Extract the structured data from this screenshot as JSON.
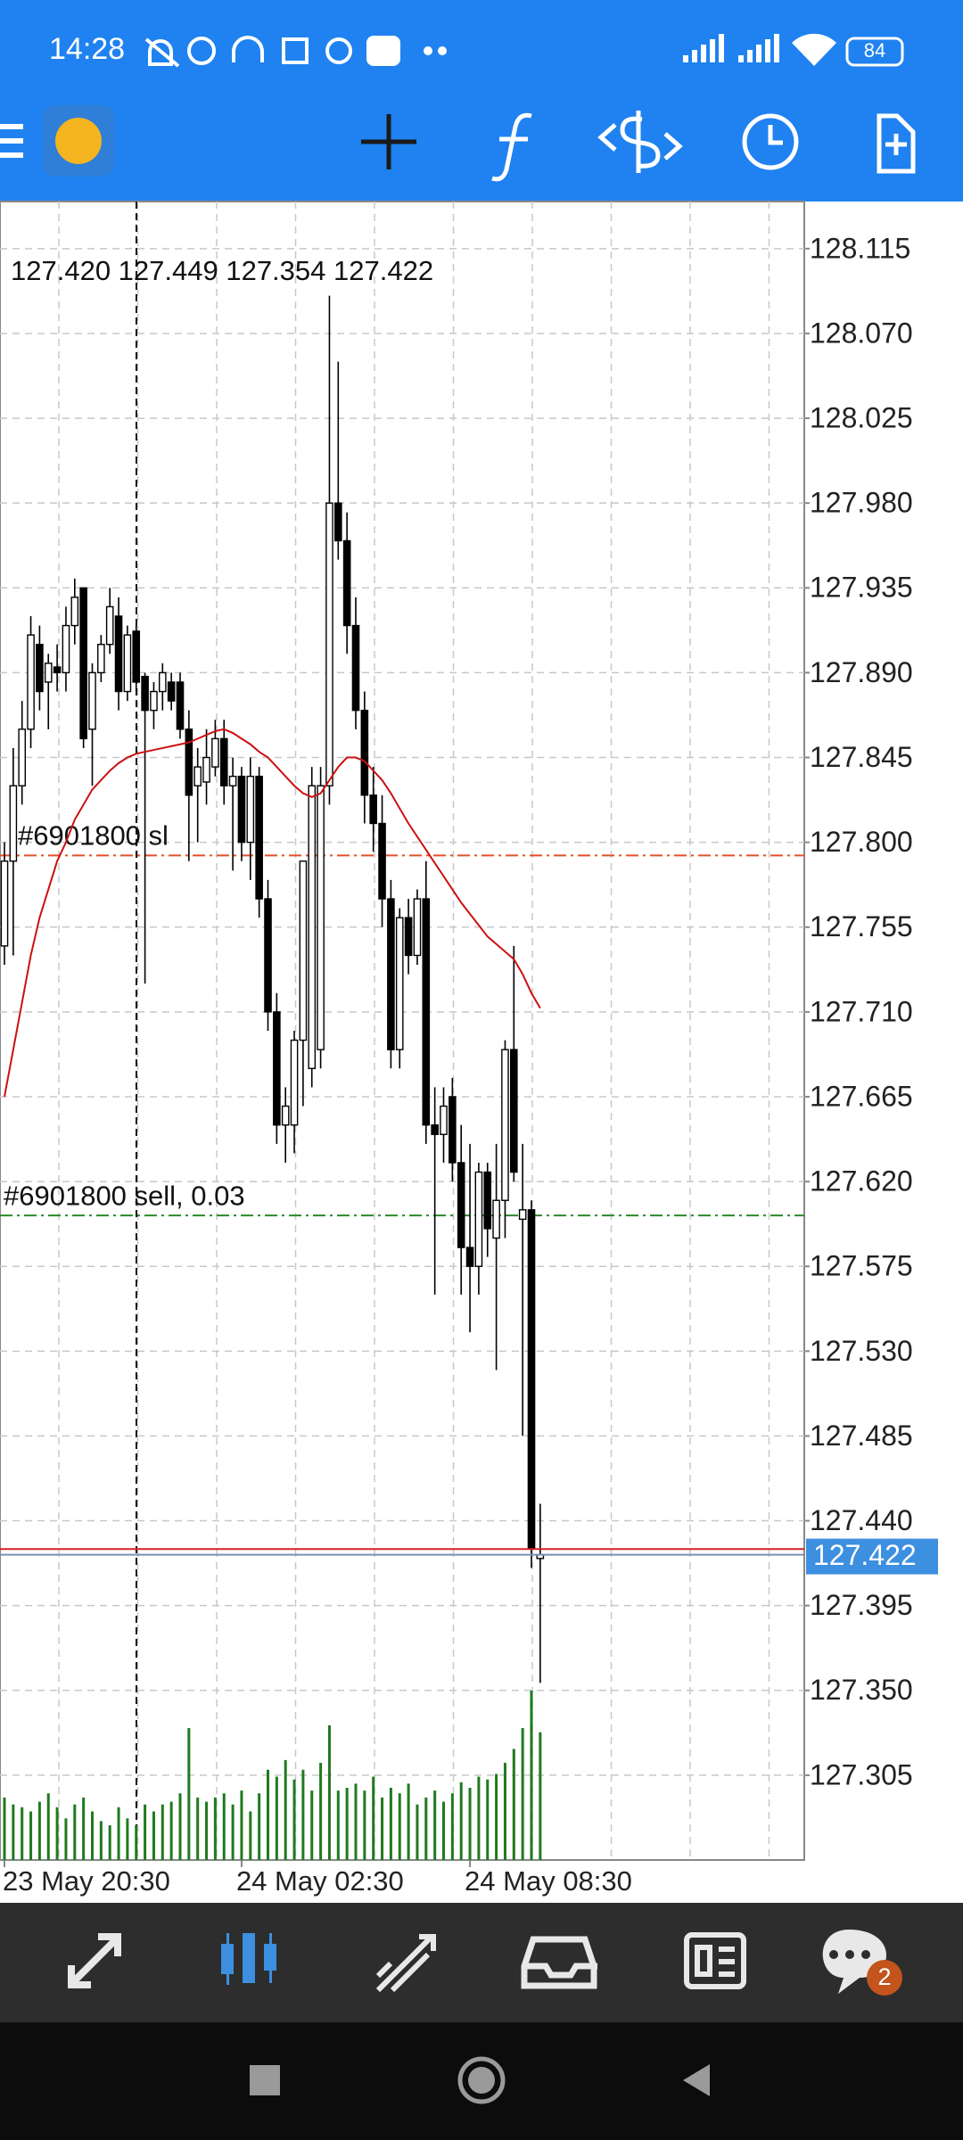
{
  "status_bar": {
    "time": "14:28",
    "battery": "84"
  },
  "chart_data": {
    "type": "candlestick",
    "ohlc_info": "127.420 127.449 127.354 127.422",
    "categories": [
      "23 May 20:30",
      null,
      null,
      null,
      null,
      null,
      null,
      null,
      null,
      null,
      null,
      null,
      null,
      null,
      null,
      null,
      null,
      null,
      null,
      null,
      null,
      null,
      null,
      null,
      null,
      null,
      null,
      "24 May 02:30",
      null,
      null,
      null,
      null,
      null,
      null,
      null,
      null,
      null,
      null,
      null,
      null,
      null,
      null,
      null,
      null,
      null,
      null,
      null,
      null,
      null,
      null,
      null,
      null,
      null,
      "24 May 08:30",
      null,
      null,
      null,
      null,
      null,
      null,
      null,
      null
    ],
    "open": [
      127.745,
      127.79,
      127.83,
      127.86,
      127.905,
      127.885,
      127.893,
      127.89,
      127.915,
      127.935,
      127.86,
      127.89,
      127.905,
      127.92,
      127.88,
      127.912,
      127.888,
      127.87,
      127.88,
      127.885,
      127.885,
      127.86,
      127.83,
      127.832,
      127.84,
      127.855,
      127.83,
      127.835,
      127.8,
      127.835,
      127.77,
      127.71,
      127.65,
      127.65,
      127.695,
      127.68,
      127.69,
      127.83,
      127.98,
      127.96,
      127.915,
      127.87,
      127.825,
      127.81,
      127.77,
      127.69,
      127.76,
      127.74,
      127.77,
      127.65,
      127.645,
      127.665,
      127.63,
      127.585,
      127.575,
      127.625,
      127.59,
      127.61,
      127.69,
      127.6,
      127.605,
      127.42
    ],
    "high": [
      127.8,
      127.85,
      127.875,
      127.92,
      127.915,
      127.9,
      127.905,
      127.925,
      127.94,
      127.935,
      127.895,
      127.91,
      127.935,
      127.93,
      127.915,
      127.915,
      127.89,
      127.885,
      127.895,
      127.89,
      127.89,
      127.87,
      127.85,
      127.86,
      127.865,
      127.865,
      127.845,
      127.84,
      127.845,
      127.84,
      127.78,
      127.72,
      127.67,
      127.7,
      127.79,
      127.84,
      127.84,
      128.09,
      128.055,
      127.975,
      127.93,
      127.88,
      127.84,
      127.825,
      127.78,
      127.765,
      127.77,
      127.775,
      127.79,
      127.67,
      127.67,
      127.675,
      127.65,
      127.64,
      127.63,
      127.63,
      127.64,
      127.695,
      127.745,
      127.64,
      127.61,
      127.449
    ],
    "low": [
      127.735,
      127.74,
      127.82,
      127.85,
      127.87,
      127.86,
      127.88,
      127.88,
      127.905,
      127.85,
      127.83,
      127.885,
      127.9,
      127.87,
      127.875,
      127.88,
      127.725,
      127.86,
      127.87,
      127.87,
      127.855,
      127.79,
      127.8,
      127.82,
      127.835,
      127.82,
      127.785,
      127.79,
      127.78,
      127.76,
      127.7,
      127.64,
      127.63,
      127.635,
      127.66,
      127.67,
      127.68,
      127.82,
      127.95,
      127.9,
      127.86,
      127.81,
      127.795,
      127.755,
      127.68,
      127.68,
      127.73,
      127.735,
      127.64,
      127.56,
      127.63,
      127.62,
      127.56,
      127.54,
      127.56,
      127.58,
      127.52,
      127.59,
      127.62,
      127.485,
      127.415,
      127.354
    ],
    "close": [
      127.79,
      127.83,
      127.86,
      127.91,
      127.88,
      127.895,
      127.89,
      127.915,
      127.93,
      127.855,
      127.89,
      127.905,
      127.925,
      127.88,
      127.91,
      127.885,
      127.87,
      127.88,
      127.89,
      127.875,
      127.86,
      127.825,
      127.84,
      127.845,
      127.855,
      127.83,
      127.835,
      127.8,
      127.835,
      127.77,
      127.71,
      127.65,
      127.66,
      127.695,
      127.79,
      127.83,
      127.83,
      127.98,
      127.96,
      127.915,
      127.87,
      127.825,
      127.81,
      127.77,
      127.69,
      127.76,
      127.74,
      127.77,
      127.65,
      127.645,
      127.66,
      127.63,
      127.585,
      127.575,
      127.625,
      127.595,
      127.61,
      127.69,
      127.625,
      127.605,
      127.425,
      127.422
    ],
    "volume": [
      45,
      40,
      38,
      35,
      42,
      48,
      38,
      30,
      40,
      45,
      35,
      28,
      25,
      38,
      30,
      25,
      40,
      35,
      40,
      42,
      48,
      95,
      45,
      42,
      45,
      48,
      40,
      50,
      35,
      48,
      65,
      60,
      72,
      58,
      65,
      50,
      70,
      97,
      50,
      52,
      55,
      50,
      60,
      45,
      52,
      48,
      55,
      40,
      45,
      50,
      42,
      48,
      56,
      52,
      60,
      58,
      62,
      70,
      80,
      95,
      122,
      92
    ],
    "volume_color": "#1f7a1f",
    "up_color": "#ffffff",
    "down_color": "#000000",
    "ma": {
      "color": "#cc1111",
      "values": [
        127.665,
        127.69,
        127.715,
        127.74,
        127.76,
        127.775,
        127.79,
        127.8,
        127.812,
        127.82,
        127.828,
        127.833,
        127.838,
        127.842,
        127.845,
        127.847,
        127.848,
        127.849,
        127.85,
        127.851,
        127.852,
        127.853,
        127.855,
        127.857,
        127.859,
        127.86,
        127.858,
        127.855,
        127.852,
        127.848,
        127.845,
        127.84,
        127.835,
        127.83,
        127.826,
        127.824,
        127.826,
        127.833,
        127.84,
        127.845,
        127.845,
        127.843,
        127.838,
        127.833,
        127.826,
        127.818,
        127.81,
        127.803,
        127.796,
        127.789,
        127.782,
        127.775,
        127.768,
        127.762,
        127.756,
        127.75,
        127.746,
        127.742,
        127.738,
        127.73,
        127.72,
        127.712
      ]
    },
    "ylim": [
      127.26,
      128.14
    ],
    "yticks": [
      128.115,
      {
        "value": 128.07,
        "label": "128.070"
      },
      128.025,
      {
        "value": 127.98,
        "label": "127.980"
      },
      127.935,
      {
        "value": 127.89,
        "label": "127.890"
      },
      127.845,
      {
        "value": 127.8,
        "label": "127.800"
      },
      127.755,
      {
        "value": 127.71,
        "label": "127.710"
      },
      127.665,
      {
        "value": 127.62,
        "label": "127.620"
      },
      127.575,
      {
        "value": 127.53,
        "label": "127.530"
      },
      127.485,
      {
        "value": 127.44,
        "label": "127.440"
      },
      127.395,
      {
        "value": 127.35,
        "label": "127.350"
      },
      127.305
    ],
    "grid": true,
    "bid_price": 127.422,
    "bid_color": "#3d8fe0",
    "ask_price": 127.425,
    "ask_color": "#d62020",
    "orders": [
      {
        "label": "#6901800 sl",
        "price": 127.793,
        "color": "#e0502a"
      },
      {
        "label": "#6901800 sell, 0.03",
        "price": 127.602,
        "color": "#2a8a2a"
      }
    ]
  },
  "bottom_nav": {
    "badge": 2
  }
}
